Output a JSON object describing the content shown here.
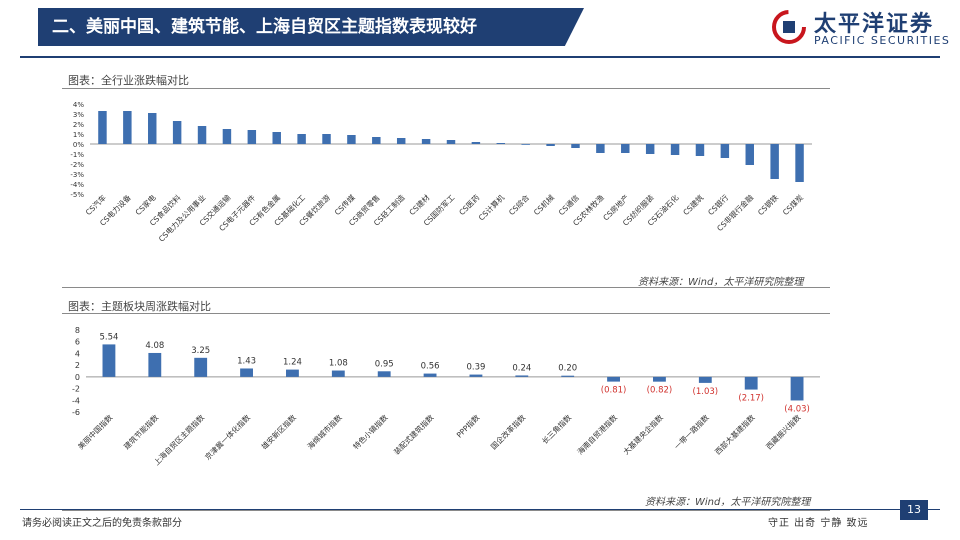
{
  "header": {
    "title": "二、美丽中国、建筑节能、上海自贸区主题指数表现较好",
    "logo_cn": "太平洋证券",
    "logo_en": "PACIFIC SECURITIES"
  },
  "charts": {
    "top_title": "图表：全行业涨跌幅对比",
    "top_source": "资料来源：Wind，太平洋研究院整理",
    "bottom_title": "图表：主题板块周涨跌幅对比",
    "bottom_source": "资料来源：Wind，太平洋研究院整理"
  },
  "footer": {
    "disclaimer": "请务必阅读正文之后的免责条款部分",
    "motto": "守正 出奇 宁静 致远",
    "page": "13"
  },
  "colors": {
    "bar": "#3e6fb0",
    "negative_label": "#d0312d",
    "brand": "#1f3f73",
    "logo_red": "#c8161d"
  },
  "chart_data": [
    {
      "type": "bar",
      "categories": [
        "CS汽车",
        "CS电力设备",
        "CS家电",
        "CS食品饮料",
        "CS电力及公用事业",
        "CS交通运输",
        "CS电子元器件",
        "CS有色金属",
        "CS基础化工",
        "CS餐饮旅游",
        "CS传媒",
        "CS商贸零售",
        "CS轻工制造",
        "CS建材",
        "CS国防军工",
        "CS医药",
        "CS计算机",
        "CS综合",
        "CS机械",
        "CS通信",
        "CS农林牧渔",
        "CS房地产",
        "CS纺织服装",
        "CS石油石化",
        "CS建筑",
        "CS银行",
        "CS非银行金融",
        "CS钢铁",
        "CS煤炭"
      ],
      "values": [
        3.3,
        3.3,
        3.1,
        2.3,
        1.8,
        1.5,
        1.4,
        1.2,
        1.0,
        1.0,
        0.9,
        0.7,
        0.6,
        0.5,
        0.4,
        0.2,
        0.1,
        0.0,
        -0.2,
        -0.4,
        -0.9,
        -0.9,
        -1.0,
        -1.1,
        -1.2,
        -1.4,
        -2.1,
        -3.5,
        -3.8
      ],
      "yticks": [
        "4%",
        "3%",
        "2%",
        "1%",
        "0%",
        "-1%",
        "-2%",
        "-3%",
        "-4%",
        "-5%"
      ],
      "ylim": [
        -5,
        4
      ]
    },
    {
      "type": "bar",
      "categories": [
        "美丽中国指数",
        "建筑节能指数",
        "上海自贸区主题指数",
        "京津冀一体化指数",
        "雄安新区指数",
        "海绵城市指数",
        "特色小镇指数",
        "装配式建筑指数",
        "PPP指数",
        "国企改革指数",
        "长三角指数",
        "海南自贸港指数",
        "大基建央企指数",
        "一带一路指数",
        "西部大基建指数",
        "西藏振兴指数"
      ],
      "values": [
        5.54,
        4.08,
        3.25,
        1.43,
        1.24,
        1.08,
        0.95,
        0.56,
        0.39,
        0.24,
        0.2,
        -0.81,
        -0.82,
        -1.03,
        -2.17,
        -4.03
      ],
      "value_labels": [
        "5.54",
        "4.08",
        "3.25",
        "1.43",
        "1.24",
        "1.08",
        "0.95",
        "0.56",
        "0.39",
        "0.24",
        "0.20",
        "(0.81)",
        "(0.82)",
        "(1.03)",
        "(2.17)",
        "(4.03)"
      ],
      "yticks": [
        "8",
        "6",
        "4",
        "2",
        "0",
        "-2",
        "-4",
        "-6"
      ],
      "ylim": [
        -6,
        8
      ]
    }
  ]
}
